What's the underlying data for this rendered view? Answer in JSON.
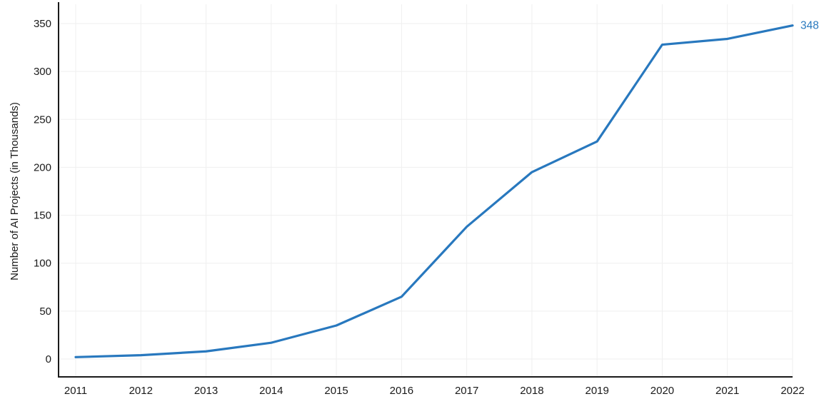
{
  "chart_data": {
    "type": "line",
    "title": "",
    "xlabel": "",
    "ylabel": "Number of AI Projects (in Thousands)",
    "x": [
      2011,
      2012,
      2013,
      2014,
      2015,
      2016,
      2017,
      2018,
      2019,
      2020,
      2021,
      2022
    ],
    "series": [
      {
        "name": "Number of AI Projects",
        "values": [
          2,
          4,
          8,
          17,
          35,
          65,
          138,
          195,
          227,
          328,
          334,
          348
        ]
      }
    ],
    "ylim": [
      0,
      350
    ],
    "yticks": [
      0,
      50,
      100,
      150,
      200,
      250,
      300,
      350
    ],
    "grid": true,
    "legend": "none",
    "annotation": {
      "text": "348",
      "x": 2022,
      "y": 348
    },
    "colors": {
      "line": "#2878be",
      "annotation": "#2a7abf",
      "axis": "#1a1a1a",
      "tick_text": "#1a1a1a",
      "grid": "#efefef",
      "background": "#ffffff"
    }
  }
}
